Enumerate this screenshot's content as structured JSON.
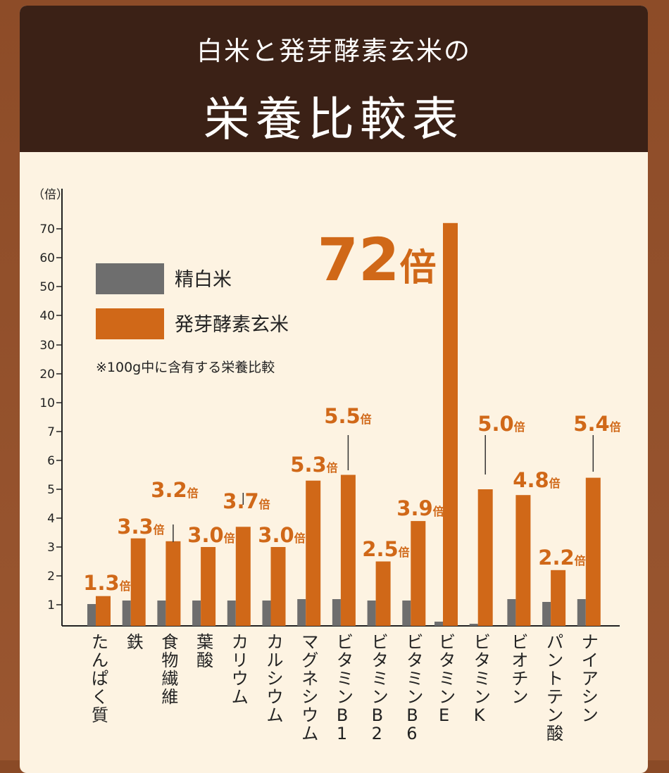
{
  "header": {
    "subtitle": "白米と発芽酵素玄米の",
    "title": "栄養比較表"
  },
  "legend": {
    "white_rice": "精白米",
    "brown_rice": "発芽酵素玄米",
    "note": "※100g中に含有する栄養比較"
  },
  "colors": {
    "white_rice": "#6e6e6e",
    "brown_rice": "#d06818",
    "header_bg": "#3b2116",
    "panel_bg": "#fdf3e2"
  },
  "chart_data": {
    "type": "bar",
    "ylabel": "（倍）",
    "y_ticks": [
      "1",
      "2",
      "3",
      "4",
      "5",
      "6",
      "7",
      "10",
      "20",
      "30",
      "40",
      "50",
      "60",
      "70"
    ],
    "y_scale": "broken: linear 0–7, then 10–70 in steps of 10 at equal spacing",
    "categories": [
      "たんぱく質",
      "鉄",
      "食物繊維",
      "葉酸",
      "カリウム",
      "カルシウム",
      "マグネシウム",
      "ビタミンB1",
      "ビタミンB2",
      "ビタミンB6",
      "ビタミンE",
      "ビタミンK",
      "ビオチン",
      "パントテン酸",
      "ナイアシン"
    ],
    "series": [
      {
        "name": "精白米",
        "values": [
          1,
          1,
          1,
          1,
          1,
          1,
          1,
          1,
          1,
          1,
          1,
          1,
          1,
          1,
          1
        ]
      },
      {
        "name": "発芽酵素玄米",
        "values": [
          1.3,
          3.3,
          3.2,
          3.0,
          3.7,
          3.0,
          5.3,
          5.5,
          2.5,
          3.9,
          72,
          5.0,
          4.8,
          2.2,
          5.4
        ]
      }
    ],
    "labels": [
      "1.3",
      "3.3",
      "3.2",
      "3.0",
      "3.7",
      "3.0",
      "5.3",
      "5.5",
      "2.5",
      "3.9",
      "72",
      "5.0",
      "4.8",
      "2.2",
      "5.4"
    ],
    "label_unit": "倍"
  }
}
